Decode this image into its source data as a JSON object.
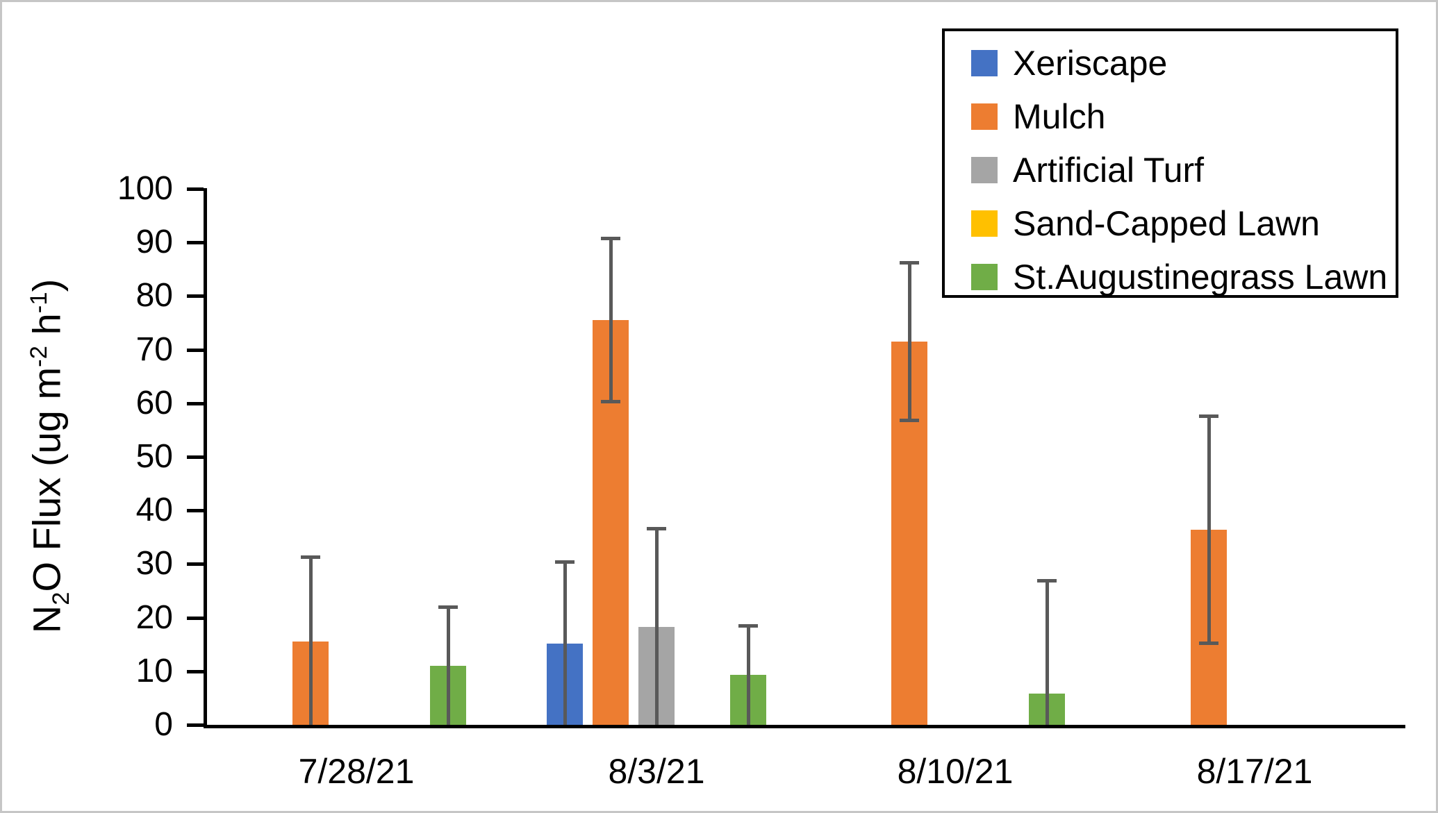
{
  "figure": {
    "background": "#ffffff",
    "frame_color": "#c6c6c6"
  },
  "chart_data": {
    "type": "bar",
    "title": "",
    "xlabel": "",
    "ylabel": "N2O Flux (ug m-2 h-1)",
    "ylabel_segments": [
      {
        "text": "N",
        "style": "normal"
      },
      {
        "text": "2",
        "style": "sub"
      },
      {
        "text": "O Flux (ug m",
        "style": "normal"
      },
      {
        "text": "-2",
        "style": "sup"
      },
      {
        "text": " h",
        "style": "normal"
      },
      {
        "text": "-1",
        "style": "sup"
      },
      {
        "text": ")",
        "style": "normal"
      }
    ],
    "ylim": [
      0,
      100
    ],
    "ytick_step": 10,
    "ytick_labels": [
      "0",
      "10",
      "20",
      "30",
      "40",
      "50",
      "60",
      "70",
      "80",
      "90",
      "100"
    ],
    "grid": false,
    "legend_position": "top-right",
    "categories": [
      "7/28/21",
      "8/3/21",
      "8/10/21",
      "8/17/21"
    ],
    "series": [
      {
        "name": "Xeriscape",
        "color": "#4472C4",
        "values": [
          0,
          15.2,
          0,
          0
        ],
        "errors": [
          0,
          15.3,
          0,
          0
        ]
      },
      {
        "name": "Mulch",
        "color": "#ED7D31",
        "values": [
          15.5,
          75.5,
          71.5,
          36.4
        ],
        "errors": [
          15.8,
          15.3,
          14.8,
          21.3
        ]
      },
      {
        "name": "Artificial Turf",
        "color": "#A5A5A5",
        "values": [
          0,
          18.2,
          0,
          0
        ],
        "errors": [
          0,
          18.4,
          0,
          0
        ]
      },
      {
        "name": "Sand-Capped Lawn",
        "color": "#FFC000",
        "values": [
          0,
          0,
          0,
          0
        ],
        "errors": [
          0,
          0,
          0,
          0
        ]
      },
      {
        "name": "St.Augustinegrass Lawn",
        "color": "#70AD47",
        "values": [
          11.0,
          9.3,
          5.8,
          0
        ],
        "errors": [
          11.0,
          9.2,
          21.1,
          0
        ]
      }
    ],
    "error_bar_color": "#595959",
    "axis_color": "#000000"
  }
}
